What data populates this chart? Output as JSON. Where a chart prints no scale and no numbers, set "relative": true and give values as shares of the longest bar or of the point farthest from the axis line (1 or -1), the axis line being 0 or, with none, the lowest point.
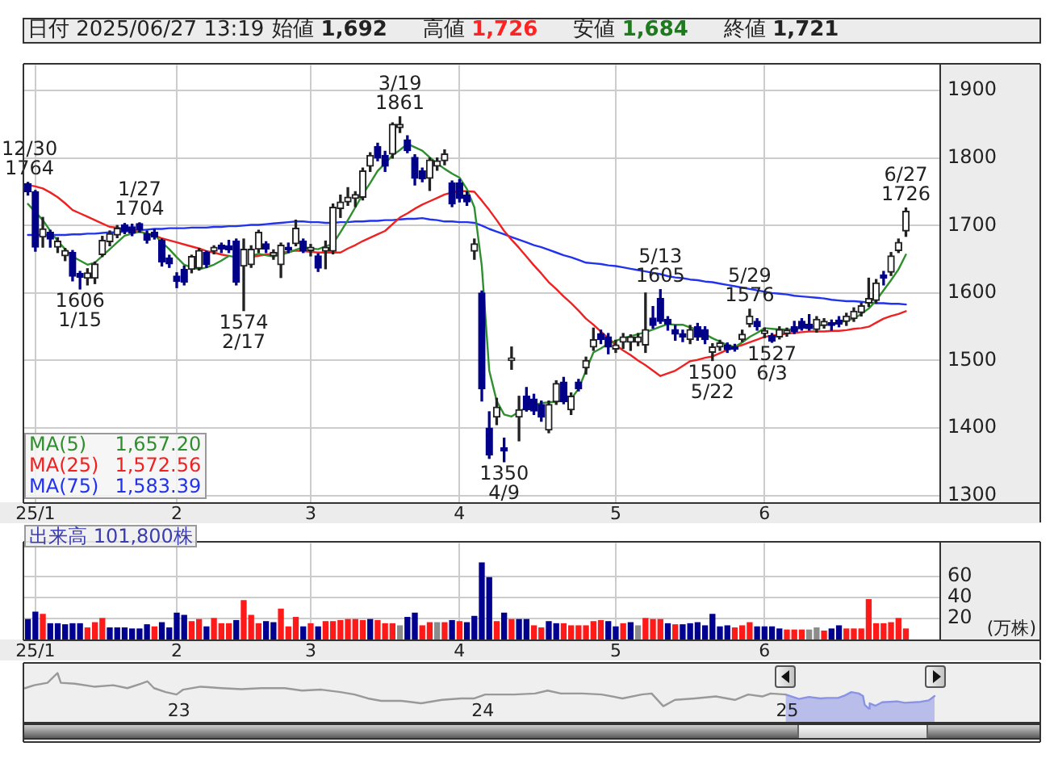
{
  "chart_data": [
    {
      "type": "candlestick",
      "title": "日付 2025/06/27 13:19",
      "annotations": [
        "始値 1,692",
        "高値 1,726",
        "安値 1,684",
        "終値 1,721",
        {
          "text": "12/30\n1764",
          "y": 1764
        },
        {
          "text": "1606\n1/15",
          "y": 1606
        },
        {
          "text": "1/27\n1704",
          "y": 1704
        },
        {
          "text": "1574\n2/17",
          "y": 1574
        },
        {
          "text": "3/19\n1861",
          "y": 1861
        },
        {
          "text": "1350\n4/9",
          "y": 1350
        },
        {
          "text": "5/13\n1605",
          "y": 1605
        },
        {
          "text": "1500\n5/22",
          "y": 1500
        },
        {
          "text": "5/29\n1576",
          "y": 1576
        },
        {
          "text": "1527\n6/3",
          "y": 1527
        },
        {
          "text": "6/27\n1726",
          "y": 1726
        }
      ],
      "categories": [
        null,
        "25/1",
        null,
        null,
        null,
        null,
        null,
        null,
        null,
        null,
        null,
        null,
        null,
        null,
        null,
        null,
        null,
        null,
        null,
        null,
        "2",
        null,
        null,
        null,
        null,
        null,
        null,
        null,
        null,
        null,
        null,
        null,
        null,
        null,
        null,
        null,
        null,
        null,
        "3",
        null,
        null,
        null,
        null,
        null,
        null,
        null,
        null,
        null,
        null,
        null,
        null,
        null,
        null,
        null,
        null,
        null,
        null,
        null,
        "4",
        null,
        null,
        null,
        null,
        null,
        null,
        null,
        null,
        null,
        null,
        null,
        null,
        null,
        null,
        null,
        null,
        null,
        null,
        null,
        null,
        "5",
        null,
        null,
        null,
        null,
        null,
        null,
        null,
        null,
        null,
        null,
        null,
        null,
        null,
        null,
        null,
        null,
        null,
        null,
        null,
        "6",
        null,
        null,
        null,
        null,
        null,
        null,
        null,
        null,
        null,
        null,
        null,
        null,
        null,
        null,
        null,
        null,
        null,
        null,
        null,
        null,
        null,
        null,
        null
      ],
      "ohlc": [
        [
          1762,
          1764,
          1745,
          1750
        ],
        [
          1750,
          1752,
          1662,
          1668
        ],
        [
          1683,
          1712,
          1668,
          1695
        ],
        [
          1690,
          1693,
          1668,
          1680
        ],
        [
          1668,
          1682,
          1660,
          1677
        ],
        [
          1655,
          1666,
          1648,
          1663
        ],
        [
          1660,
          1663,
          1618,
          1625
        ],
        [
          1629,
          1632,
          1606,
          1623
        ],
        [
          1622,
          1636,
          1612,
          1630
        ],
        [
          1622,
          1646,
          1614,
          1643
        ],
        [
          1657,
          1684,
          1654,
          1678
        ],
        [
          1676,
          1692,
          1670,
          1688
        ],
        [
          1686,
          1700,
          1682,
          1696
        ],
        [
          1701,
          1703,
          1688,
          1692
        ],
        [
          1698,
          1702,
          1685,
          1689
        ],
        [
          1703,
          1704,
          1690,
          1694
        ],
        [
          1688,
          1692,
          1674,
          1678
        ],
        [
          1690,
          1694,
          1680,
          1683
        ],
        [
          1678,
          1680,
          1640,
          1646
        ],
        [
          1652,
          1656,
          1638,
          1643
        ],
        [
          1625,
          1630,
          1608,
          1617
        ],
        [
          1635,
          1640,
          1612,
          1616
        ],
        [
          1635,
          1656,
          1630,
          1654
        ],
        [
          1637,
          1666,
          1634,
          1663
        ],
        [
          1660,
          1662,
          1638,
          1642
        ],
        [
          1662,
          1670,
          1658,
          1668
        ],
        [
          1671,
          1674,
          1660,
          1665
        ],
        [
          1670,
          1678,
          1660,
          1664
        ],
        [
          1677,
          1680,
          1612,
          1616
        ],
        [
          1640,
          1680,
          1574,
          1665
        ],
        [
          1642,
          1670,
          1638,
          1665
        ],
        [
          1665,
          1693,
          1660,
          1690
        ],
        [
          1673,
          1676,
          1660,
          1665
        ],
        [
          1655,
          1664,
          1650,
          1660
        ],
        [
          1642,
          1674,
          1623,
          1671
        ],
        [
          1668,
          1674,
          1660,
          1664
        ],
        [
          1673,
          1708,
          1670,
          1696
        ],
        [
          1677,
          1680,
          1660,
          1663
        ],
        [
          1663,
          1672,
          1655,
          1668
        ],
        [
          1655,
          1658,
          1632,
          1637
        ],
        [
          1662,
          1677,
          1636,
          1668
        ],
        [
          1662,
          1732,
          1658,
          1727
        ],
        [
          1725,
          1745,
          1712,
          1735
        ],
        [
          1735,
          1756,
          1730,
          1742
        ],
        [
          1740,
          1750,
          1728,
          1746
        ],
        [
          1742,
          1785,
          1738,
          1781
        ],
        [
          1788,
          1808,
          1780,
          1804
        ],
        [
          1817,
          1822,
          1796,
          1800
        ],
        [
          1804,
          1810,
          1780,
          1788
        ],
        [
          1806,
          1852,
          1800,
          1850
        ],
        [
          1845,
          1861,
          1838,
          1850
        ],
        [
          1827,
          1833,
          1808,
          1811
        ],
        [
          1801,
          1805,
          1760,
          1770
        ],
        [
          1781,
          1785,
          1765,
          1769
        ],
        [
          1770,
          1800,
          1752,
          1797
        ],
        [
          1788,
          1800,
          1782,
          1796
        ],
        [
          1796,
          1812,
          1790,
          1806
        ],
        [
          1763,
          1766,
          1728,
          1732
        ],
        [
          1763,
          1768,
          1735,
          1740
        ],
        [
          1745,
          1750,
          1730,
          1735
        ],
        [
          1662,
          1680,
          1650,
          1673
        ],
        [
          1600,
          1603,
          1440,
          1458
        ],
        [
          1400,
          1424,
          1355,
          1360
        ],
        [
          1416,
          1444,
          1405,
          1431
        ],
        [
          1371,
          1385,
          1350,
          1366
        ],
        [
          1500,
          1520,
          1487,
          1504
        ],
        [
          1416,
          1447,
          1381,
          1427
        ],
        [
          1447,
          1460,
          1425,
          1427
        ],
        [
          1443,
          1450,
          1420,
          1425
        ],
        [
          1435,
          1440,
          1410,
          1416
        ],
        [
          1397,
          1440,
          1393,
          1435
        ],
        [
          1439,
          1470,
          1435,
          1466
        ],
        [
          1468,
          1475,
          1436,
          1439
        ],
        [
          1427,
          1452,
          1420,
          1447
        ],
        [
          1468,
          1472,
          1455,
          1458
        ],
        [
          1489,
          1505,
          1480,
          1500
        ],
        [
          1520,
          1548,
          1515,
          1531
        ],
        [
          1540,
          1545,
          1525,
          1531
        ],
        [
          1535,
          1540,
          1510,
          1520
        ],
        [
          1517,
          1530,
          1512,
          1523
        ],
        [
          1527,
          1540,
          1518,
          1535
        ],
        [
          1527,
          1538,
          1515,
          1535
        ],
        [
          1527,
          1540,
          1522,
          1535
        ],
        [
          1523,
          1600,
          1512,
          1546
        ],
        [
          1563,
          1580,
          1548,
          1552
        ],
        [
          1592,
          1605,
          1555,
          1558
        ],
        [
          1561,
          1565,
          1545,
          1554
        ],
        [
          1546,
          1552,
          1530,
          1539
        ],
        [
          1540,
          1545,
          1528,
          1535
        ],
        [
          1531,
          1552,
          1525,
          1546
        ],
        [
          1550,
          1555,
          1530,
          1535
        ],
        [
          1546,
          1550,
          1525,
          1531
        ],
        [
          1512,
          1525,
          1500,
          1520
        ],
        [
          1520,
          1530,
          1515,
          1526
        ],
        [
          1523,
          1526,
          1512,
          1516
        ],
        [
          1520,
          1524,
          1514,
          1517
        ],
        [
          1531,
          1545,
          1528,
          1539
        ],
        [
          1554,
          1576,
          1550,
          1566
        ],
        [
          1558,
          1562,
          1545,
          1550
        ],
        [
          1540,
          1548,
          1534,
          1544
        ],
        [
          1537,
          1540,
          1527,
          1529
        ],
        [
          1535,
          1550,
          1532,
          1546
        ],
        [
          1540,
          1548,
          1536,
          1545
        ],
        [
          1550,
          1558,
          1540,
          1543
        ],
        [
          1558,
          1562,
          1545,
          1548
        ],
        [
          1554,
          1568,
          1545,
          1547
        ],
        [
          1546,
          1565,
          1542,
          1561
        ],
        [
          1552,
          1562,
          1548,
          1558
        ],
        [
          1556,
          1560,
          1545,
          1552
        ],
        [
          1560,
          1565,
          1550,
          1554
        ],
        [
          1558,
          1570,
          1552,
          1566
        ],
        [
          1562,
          1578,
          1558,
          1573
        ],
        [
          1571,
          1585,
          1566,
          1581
        ],
        [
          1585,
          1622,
          1580,
          1592
        ],
        [
          1589,
          1620,
          1585,
          1615
        ],
        [
          1627,
          1632,
          1612,
          1622
        ],
        [
          1631,
          1660,
          1626,
          1655
        ],
        [
          1663,
          1680,
          1660,
          1675
        ],
        [
          1692,
          1726,
          1684,
          1721
        ],
        null,
        null,
        null,
        null
      ],
      "colors": [
        "#000088",
        "#000088",
        "#222222",
        "#000088",
        "#222222",
        "#222222",
        "#000088",
        "#000088",
        "#222222",
        "#222222",
        "#222222",
        "#222222",
        "#222222",
        "#000088",
        "#000088",
        "#000088",
        "#000088",
        "#000088",
        "#000088",
        "#000088",
        "#000088",
        "#000088",
        "#222222",
        "#222222",
        "#000088",
        "#222222",
        "#000088",
        "#000088",
        "#000088",
        "#222222",
        "#222222",
        "#222222",
        "#000088",
        "#222222",
        "#222222",
        "#000088",
        "#222222",
        "#000088",
        "#222222",
        "#000088",
        "#222222",
        "#222222",
        "#222222",
        "#222222",
        "#222222",
        "#222222",
        "#222222",
        "#000088",
        "#000088",
        "#222222",
        "#222222",
        "#000088",
        "#000088",
        "#000088",
        "#222222",
        "#222222",
        "#222222",
        "#000088",
        "#000088",
        "#000088",
        "#222222",
        "#000088",
        "#000088",
        "#222222",
        "#000088",
        "#222222",
        "#222222",
        "#000088",
        "#000088",
        "#000088",
        "#222222",
        "#222222",
        "#000088",
        "#222222",
        "#000088",
        "#222222",
        "#222222",
        "#000088",
        "#000088",
        "#222222",
        "#222222",
        "#222222",
        "#222222",
        "#222222",
        "#000088",
        "#000088",
        "#000088",
        "#000088",
        "#000088",
        "#222222",
        "#000088",
        "#000088",
        "#222222",
        "#222222",
        "#000088",
        "#000088",
        "#222222",
        "#222222",
        "#000088",
        "#222222",
        "#000088",
        "#222222",
        "#222222",
        "#000088",
        "#000088",
        "#000088",
        "#222222",
        "#222222",
        "#000088",
        "#000088",
        "#222222",
        "#222222",
        "#222222",
        "#222222",
        "#222222",
        "#000088",
        "#222222",
        "#222222",
        "#222222",
        null,
        null,
        null,
        null
      ],
      "series": [
        {
          "name": "MA(5) 1,657.20",
          "type": "line",
          "color": "#2f8f2f",
          "values": [
            1732,
            1720,
            1708,
            1692,
            1677,
            1665,
            1654,
            1648,
            1642,
            1645,
            1655,
            1665,
            1675,
            1685,
            1688,
            1691,
            1688,
            1686,
            1675,
            1665,
            1653,
            1642,
            1638,
            1635,
            1638,
            1642,
            1648,
            1655,
            1653,
            null,
            1655,
            1658,
            1656,
            1654,
            1657,
            1660,
            1664,
            1668,
            1666,
            1665,
            1669,
            1673,
            1690,
            1708,
            1727,
            1746,
            1763,
            1781,
            1792,
            1804,
            1812,
            1821,
            1816,
            1811,
            1801,
            1792,
            1784,
            1777,
            1771,
            1754,
            1727,
            1640,
            1485,
            1440,
            1420,
            1417,
            1424,
            1431,
            1434,
            1437,
            1438,
            1439,
            1441,
            1443,
            1458,
            1485,
            1512,
            1518,
            1525,
            1529,
            1533,
            1536,
            1539,
            1542,
            1546,
            1550,
            1554,
            1553,
            1553,
            1549,
            1546,
            1539,
            1533,
            1528,
            1523,
            1520,
            1527,
            1535,
            1541,
            1548,
            1547,
            1546,
            1546,
            1546,
            1548,
            1550,
            1551,
            1553,
            1554,
            1556,
            1559,
            1562,
            1569,
            1577,
            1589,
            1604,
            1619,
            1635,
            1657,
            null,
            null,
            null,
            null
          ]
        },
        {
          "name": "MA(25) 1,572.56",
          "type": "line",
          "color": "#ee2222",
          "values": [
            1760,
            1758,
            1755,
            1749,
            1742,
            1733,
            1723,
            1718,
            1713,
            1708,
            1703,
            1698,
            1697,
            1695,
            1694,
            1691,
            1688,
            1685,
            1681,
            1678,
            1675,
            1672,
            1669,
            1666,
            1662,
            1660,
            1657,
            1655,
            null,
            null,
            1654,
            1655,
            1657,
            1658,
            1660,
            1661,
            1663,
            1662,
            1661,
            1660,
            1660,
            1660,
            1660,
            1666,
            1671,
            1677,
            1682,
            1687,
            1692,
            1702,
            1712,
            1718,
            1725,
            1731,
            1736,
            1741,
            1746,
            1749,
            1751,
            1751,
            1750,
            1737,
            1723,
            1708,
            1692,
            1679,
            1667,
            1654,
            1641,
            1629,
            1616,
            1606,
            1595,
            1585,
            1574,
            1562,
            1553,
            1543,
            1533,
            1523,
            1515,
            1508,
            1500,
            1493,
            1485,
            1477,
            1481,
            1485,
            1492,
            1499,
            1501,
            1504,
            1506,
            1511,
            1516,
            1520,
            1523,
            1527,
            1531,
            1535,
            1537,
            1538,
            1540,
            1541,
            1542,
            1543,
            1543,
            1543,
            1544,
            1544,
            1545,
            1547,
            1548,
            1550,
            1556,
            1562,
            1566,
            1569,
            1573,
            null,
            null,
            null,
            null
          ]
        },
        {
          "name": "MA(75) 1,583.39",
          "type": "line",
          "color": "#2233ee",
          "values": [
            1686,
            1686,
            1686,
            1686,
            1686,
            1686,
            1687,
            1687,
            1688,
            1688,
            1689,
            1690,
            1690,
            1691,
            1692,
            1693,
            1694,
            1695,
            1695,
            1696,
            1696,
            1696,
            1697,
            1697,
            1697,
            1698,
            1698,
            1699,
            1699,
            1700,
            1701,
            1701,
            1702,
            1703,
            1704,
            1705,
            1706,
            1706,
            1705,
            1705,
            1704,
            1704,
            1705,
            1705,
            1706,
            1706,
            1707,
            1707,
            1708,
            1708,
            1709,
            1710,
            1710,
            1711,
            1709,
            1708,
            1706,
            1706,
            1705,
            1705,
            1704,
            1700,
            1695,
            1691,
            1687,
            1683,
            1679,
            1675,
            1671,
            1668,
            1664,
            1660,
            1656,
            1653,
            1649,
            1645,
            1644,
            1643,
            1641,
            1640,
            1638,
            1636,
            1634,
            1632,
            1630,
            1628,
            1625,
            1623,
            1622,
            1620,
            1619,
            1617,
            1616,
            1614,
            1612,
            1610,
            1608,
            1606,
            1604,
            1602,
            1600,
            1599,
            1598,
            1596,
            1595,
            1594,
            1593,
            1592,
            1590,
            1589,
            1588,
            1588,
            1587,
            1586,
            1585,
            1585,
            1584,
            1584,
            1583,
            null,
            null,
            null,
            null
          ]
        }
      ],
      "ylim": [
        1290,
        1938
      ],
      "yticks": [
        1300,
        1400,
        1500,
        1600,
        1700,
        1800,
        1900
      ],
      "grid": true,
      "legend": "bottom left"
    },
    {
      "type": "bar",
      "title": "出来高 101,800株",
      "ylabel": "(万株)",
      "categories": [
        null,
        "25/1",
        null,
        null,
        null,
        null,
        null,
        null,
        null,
        null,
        null,
        null,
        null,
        null,
        null,
        null,
        null,
        null,
        null,
        null,
        "2",
        null,
        null,
        null,
        null,
        null,
        null,
        null,
        null,
        null,
        null,
        null,
        null,
        null,
        null,
        null,
        null,
        null,
        "3",
        null,
        null,
        null,
        null,
        null,
        null,
        null,
        null,
        null,
        null,
        null,
        null,
        null,
        null,
        null,
        null,
        null,
        null,
        null,
        "4",
        null,
        null,
        null,
        null,
        null,
        null,
        null,
        null,
        null,
        null,
        null,
        null,
        null,
        null,
        null,
        null,
        null,
        null,
        null,
        null,
        "5",
        null,
        null,
        null,
        null,
        null,
        null,
        null,
        null,
        null,
        null,
        null,
        null,
        null,
        null,
        null,
        null,
        null,
        null,
        null,
        "6",
        null,
        null,
        null,
        null,
        null,
        null,
        null,
        null,
        null,
        null,
        null,
        null,
        null,
        null,
        null,
        null,
        null,
        null,
        null,
        null,
        null,
        null,
        null
      ],
      "values": [
        19,
        26,
        24,
        15,
        15,
        14,
        15,
        15,
        11,
        16,
        20,
        11,
        11,
        11,
        10,
        10,
        14,
        12,
        16,
        11,
        25,
        23,
        17,
        19,
        12,
        20,
        15,
        15,
        18,
        37,
        23,
        15,
        17,
        16,
        29,
        12,
        21,
        12,
        15,
        12,
        17,
        17,
        18,
        19,
        19,
        18,
        19,
        18,
        15,
        15,
        13,
        21,
        25,
        13,
        16,
        16,
        16,
        18,
        17,
        16,
        22,
        73,
        59,
        17,
        25,
        19,
        19,
        19,
        13,
        11,
        17,
        15,
        15,
        13,
        13,
        13,
        17,
        18,
        17,
        12,
        15,
        16,
        13,
        20,
        19,
        19,
        15,
        14,
        14,
        15,
        16,
        13,
        24,
        12,
        13,
        11,
        13,
        16,
        12,
        12,
        12,
        10,
        9,
        9,
        9,
        9,
        11,
        8,
        10,
        13,
        10,
        10,
        10,
        38,
        15,
        15,
        16,
        20,
        10,
        null,
        null,
        null,
        null
      ],
      "colors": [
        "#000090",
        "#000090",
        "#ff1a1a",
        "#000090",
        "#000090",
        "#000090",
        "#000090",
        "#000090",
        "#ff1a1a",
        "#ff1a1a",
        "#ff1a1a",
        "#000090",
        "#000090",
        "#000090",
        "#000090",
        "#000090",
        "#000090",
        "#ff1a1a",
        "#000090",
        "#000090",
        "#000090",
        "#000090",
        "#ff1a1a",
        "#ff1a1a",
        "#000090",
        "#ff1a1a",
        "#ff1a1a",
        "#ff1a1a",
        "#000090",
        "#ff1a1a",
        "#ff1a1a",
        "#ff1a1a",
        "#000090",
        "#000090",
        "#ff1a1a",
        "#ff1a1a",
        "#ff1a1a",
        "#000090",
        "#ff1a1a",
        "#000090",
        "#ff1a1a",
        "#ff1a1a",
        "#ff1a1a",
        "#ff1a1a",
        "#ff1a1a",
        "#ff1a1a",
        "#000090",
        "#ff1a1a",
        "#ff1a1a",
        "#ff1a1a",
        "#8c8c8c",
        "#000090",
        "#000090",
        "#ff1a1a",
        "#ff1a1a",
        "#8c8c8c",
        "#ff1a1a",
        "#000090",
        "#ff1a1a",
        "#000090",
        "#000090",
        "#000090",
        "#000090",
        "#ff1a1a",
        "#000090",
        "#ff1a1a",
        "#000090",
        "#000090",
        "#ff1a1a",
        "#ff1a1a",
        "#000090",
        "#000090",
        "#ff1a1a",
        "#ff1a1a",
        "#ff1a1a",
        "#ff1a1a",
        "#ff1a1a",
        "#ff1a1a",
        "#000090",
        "#000090",
        "#ff1a1a",
        "#000090",
        "#8c8c8c",
        "#ff1a1a",
        "#ff1a1a",
        "#ff1a1a",
        "#000090",
        "#ff1a1a",
        "#000090",
        "#000090",
        "#000090",
        "#000090",
        "#000090",
        "#000090",
        "#000090",
        "#ff1a1a",
        "#ff1a1a",
        "#ff1a1a",
        "#000090",
        "#000090",
        "#000090",
        "#000090",
        "#ff1a1a",
        "#ff1a1a",
        "#ff1a1a",
        "#8c8c8c",
        "#8c8c8c",
        "#ff1a1a",
        "#000090",
        "#000090",
        "#ff1a1a",
        "#ff1a1a",
        "#ff1a1a",
        "#ff1a1a",
        "#ff1a1a",
        "#ff1a1a",
        "#ff1a1a",
        "#ff1a1a",
        "#ff1a1a",
        null,
        null,
        null,
        null
      ],
      "ylim": [
        0,
        92
      ],
      "yticks": [
        20,
        40,
        60
      ],
      "grid": true
    },
    {
      "type": "line",
      "relative": true,
      "series": [
        {
          "color": "#999999",
          "x": [
            "2022-06-30",
            "2022-07-11",
            "2022-07-27",
            "2022-08-08",
            "2022-08-12",
            "2022-08-29",
            "2022-09-21",
            "2022-10-14",
            "2022-10-31",
            "2022-11-16",
            "2022-11-24",
            "2022-12-02",
            "2022-12-16",
            "2022-12-29",
            "2023-01-06",
            "2023-01-27",
            "2023-02-21",
            "2023-03-17",
            "2023-04-10",
            "2023-05-08",
            "2023-05-29",
            "2023-06-21",
            "2023-07-14",
            "2023-07-31",
            "2023-08-16",
            "2023-09-01",
            "2023-09-25",
            "2023-10-19",
            "2023-11-13",
            "2023-12-06",
            "2023-12-22",
            "2024-01-04",
            "2024-01-15",
            "2024-02-08",
            "2024-03-04",
            "2024-03-19",
            "2024-04-04",
            "2024-04-30",
            "2024-05-23",
            "2024-06-17",
            "2024-07-10",
            "2024-07-22",
            "2024-08-05",
            "2024-08-19",
            "2024-09-12",
            "2024-10-07",
            "2024-10-30",
            "2024-11-15",
            "2024-12-02",
            "2024-12-12",
            "2024-12-30"
          ],
          "values": [
            0.69,
            0.75,
            0.8,
            1,
            0.8,
            0.78,
            0.72,
            0.75,
            0.69,
            0.78,
            0.83,
            0.69,
            0.61,
            0.56,
            0.66,
            0.72,
            0.69,
            0.67,
            0.69,
            0.69,
            0.64,
            0.66,
            0.61,
            0.56,
            0.48,
            0.43,
            0.43,
            0.38,
            0.45,
            0.48,
            0.48,
            0.56,
            0.56,
            0.56,
            0.58,
            0.64,
            0.58,
            0.58,
            0.56,
            0.48,
            0.56,
            0.58,
            0.32,
            0.45,
            0.48,
            0.52,
            0.45,
            0.56,
            0.52,
            0.58,
            0.56
          ]
        },
        {
          "type": "area",
          "color": "#8a93e3",
          "x": [
            "2024-12-30",
            "2025-01-15",
            "2025-01-27",
            "2025-02-10",
            "2025-02-17",
            "2025-03-03",
            "2025-03-11",
            "2025-03-19",
            "2025-03-28",
            "2025-04-02",
            "2025-04-04",
            "2025-04-09",
            "2025-04-10",
            "2025-04-17",
            "2025-04-25",
            "2025-05-13",
            "2025-05-22",
            "2025-06-10",
            "2025-06-20",
            "2025-06-27"
          ],
          "values": [
            0.56,
            0.47,
            0.51,
            0.48,
            0.49,
            0.49,
            0.54,
            0.61,
            0.58,
            0.53,
            0.35,
            0.27,
            0.38,
            0.33,
            0.4,
            0.42,
            0.39,
            0.41,
            0.44,
            0.53
          ]
        }
      ],
      "xlim": [
        "2022-06-29",
        "2025-11-02"
      ],
      "xticks": [
        {
          "value": "2023-01-01",
          "label": "23"
        },
        {
          "value": "2024-01-01",
          "label": "24"
        },
        {
          "value": "2025-01-01",
          "label": "25"
        }
      ]
    }
  ]
}
